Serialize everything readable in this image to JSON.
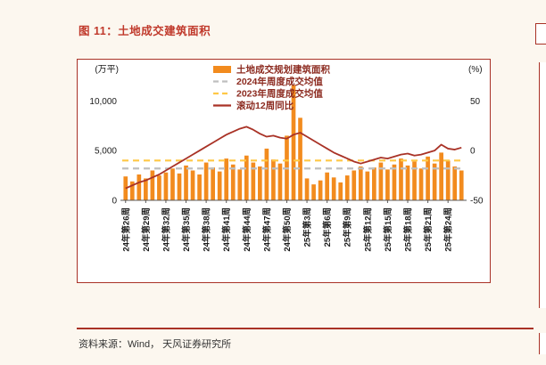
{
  "page": {
    "title": "图 11：土地成交建筑面积",
    "source": "资料来源：Wind， 天风证券研究所"
  },
  "colors": {
    "page_bg": "#FCF7EF",
    "title_red": "#C0392B",
    "frame_border": "#A93226",
    "bar_orange": "#F28B1E",
    "avg2024_gray": "#BFBFBF",
    "avg2023_yellow": "#FFC846",
    "line_red": "#A93226",
    "legend_text": "#8C2B20",
    "axis_text": "#1a1a1a",
    "axis_line": "#595959"
  },
  "chart_data": {
    "type": "bar+line",
    "title": "土地成交建筑面积",
    "legend_position": "top-center-inside",
    "grid": false,
    "left_axis": {
      "label": "(万平)",
      "ticks": [
        0,
        5000,
        10000
      ],
      "tick_labels": [
        "0",
        "5,000",
        "10,000"
      ],
      "max": 12000
    },
    "right_axis": {
      "label": "(%)",
      "ticks": [
        -50,
        0,
        50
      ],
      "tick_labels": [
        "-50",
        "0",
        "50"
      ],
      "min": -50,
      "max": 70
    },
    "x_tick_labels": [
      "24年第26周",
      "24年第29周",
      "24年第32周",
      "24年第35周",
      "24年第38周",
      "24年第41周",
      "24年第44周",
      "24年第47周",
      "24年第50周",
      "25年第3周",
      "25年第6周",
      "25年第9周",
      "25年第12周",
      "25年第15周",
      "25年第18周",
      "25年第21周",
      "25年第24周"
    ],
    "x_tick_every": 3,
    "series": [
      {
        "name": "土地成交规划建筑面积",
        "type": "bar",
        "axis": "left",
        "color_key": "bar_orange",
        "values": [
          2400,
          1900,
          2600,
          2200,
          3000,
          2500,
          2800,
          3200,
          2700,
          3500,
          3000,
          2600,
          3800,
          3300,
          2900,
          4200,
          3600,
          3100,
          4500,
          3800,
          3400,
          5200,
          4100,
          3700,
          6500,
          11600,
          8300,
          2200,
          1600,
          2000,
          2800,
          2300,
          1800,
          2500,
          3000,
          3400,
          2900,
          3300,
          3800,
          3100,
          3600,
          4200,
          3500,
          3900,
          3200,
          4400,
          3700,
          4800,
          4000,
          3400,
          3000
        ]
      },
      {
        "name": "2024年周度成交均值",
        "type": "avg",
        "axis": "left",
        "color_key": "avg2024_gray",
        "value": 3200
      },
      {
        "name": "2023年周度成交均值",
        "type": "avg",
        "axis": "left",
        "color_key": "avg2023_yellow",
        "value": 4000
      },
      {
        "name": "滚动12周同比",
        "type": "line",
        "axis": "right",
        "color_key": "line_red",
        "values": [
          -38,
          -35,
          -32,
          -30,
          -27,
          -24,
          -20,
          -16,
          -12,
          -8,
          -4,
          0,
          4,
          8,
          12,
          16,
          19,
          22,
          24,
          21,
          17,
          14,
          15,
          13,
          12,
          16,
          18,
          14,
          10,
          6,
          2,
          -2,
          -5,
          -8,
          -11,
          -13,
          -11,
          -9,
          -7,
          -8,
          -6,
          -4,
          -3,
          -5,
          -4,
          -2,
          0,
          6,
          2,
          1,
          3
        ]
      }
    ]
  }
}
